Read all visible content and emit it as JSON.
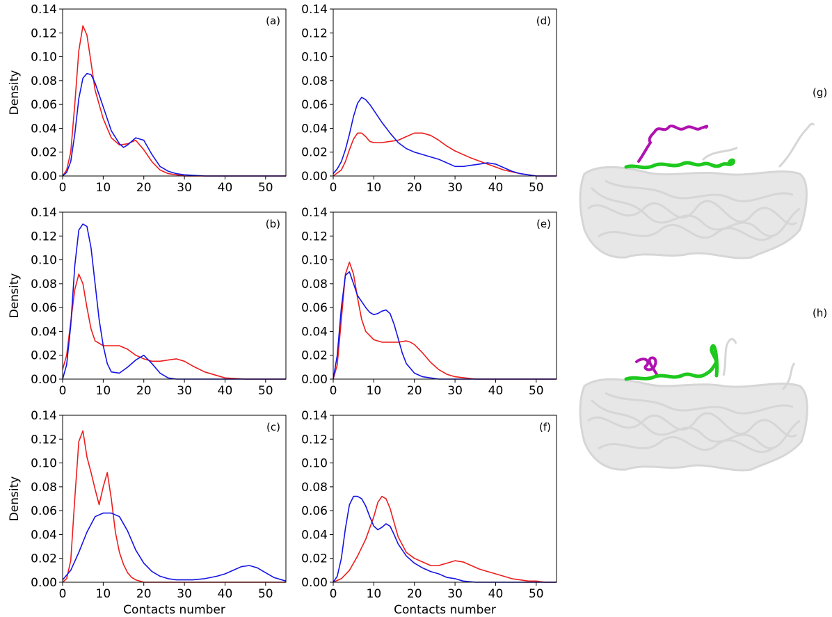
{
  "colors": {
    "red": "#ee1c1c",
    "blue": "#1414e6",
    "magenta": "#b012b0",
    "green": "#1ec81e",
    "protein": "#d8d8d8"
  },
  "chart_data": [
    {
      "label": "(a)",
      "type": "line",
      "xlim": [
        0,
        55
      ],
      "ylim": [
        0,
        0.14
      ],
      "ylabel": "Density",
      "xlabel": "",
      "xticks": [
        "0",
        "10",
        "20",
        "30",
        "40",
        "50"
      ],
      "yticks": [
        "0.00",
        "0.02",
        "0.04",
        "0.06",
        "0.08",
        "0.10",
        "0.12",
        "0.14"
      ],
      "series": [
        {
          "color": "red",
          "x": [
            0,
            1,
            2,
            3,
            4,
            5,
            6,
            7,
            8,
            10,
            12,
            14,
            16,
            18,
            20,
            22,
            24,
            26,
            28,
            30,
            35,
            55
          ],
          "y": [
            0,
            0.005,
            0.02,
            0.06,
            0.105,
            0.126,
            0.118,
            0.095,
            0.072,
            0.048,
            0.032,
            0.026,
            0.027,
            0.03,
            0.022,
            0.012,
            0.005,
            0.002,
            0.001,
            0,
            0,
            0
          ]
        },
        {
          "color": "blue",
          "x": [
            0,
            1,
            2,
            3,
            4,
            5,
            6,
            7,
            8,
            10,
            12,
            14,
            15,
            16,
            18,
            20,
            22,
            24,
            26,
            28,
            30,
            35,
            55
          ],
          "y": [
            0,
            0.003,
            0.012,
            0.035,
            0.065,
            0.082,
            0.086,
            0.085,
            0.078,
            0.058,
            0.038,
            0.027,
            0.024,
            0.026,
            0.032,
            0.03,
            0.018,
            0.008,
            0.004,
            0.002,
            0.001,
            0,
            0
          ]
        }
      ]
    },
    {
      "label": "(b)",
      "type": "line",
      "xlim": [
        0,
        55
      ],
      "ylim": [
        0,
        0.14
      ],
      "ylabel": "Density",
      "xlabel": "",
      "xticks": [
        "0",
        "10",
        "20",
        "30",
        "40",
        "50"
      ],
      "yticks": [
        "0.00",
        "0.02",
        "0.04",
        "0.06",
        "0.08",
        "0.10",
        "0.12",
        "0.14"
      ],
      "series": [
        {
          "color": "red",
          "x": [
            0,
            1,
            2,
            3,
            4,
            5,
            6,
            7,
            8,
            10,
            12,
            14,
            16,
            18,
            20,
            22,
            24,
            26,
            28,
            30,
            32,
            35,
            40,
            45,
            55
          ],
          "y": [
            0.008,
            0.02,
            0.048,
            0.075,
            0.088,
            0.08,
            0.06,
            0.042,
            0.032,
            0.028,
            0.028,
            0.028,
            0.025,
            0.02,
            0.017,
            0.015,
            0.015,
            0.016,
            0.017,
            0.015,
            0.011,
            0.006,
            0.001,
            0,
            0
          ]
        },
        {
          "color": "blue",
          "x": [
            0,
            1,
            2,
            3,
            4,
            5,
            6,
            7,
            8,
            9,
            10,
            11,
            12,
            14,
            16,
            18,
            20,
            22,
            24,
            26,
            28,
            30,
            55
          ],
          "y": [
            0,
            0.012,
            0.045,
            0.095,
            0.125,
            0.13,
            0.128,
            0.11,
            0.08,
            0.05,
            0.028,
            0.013,
            0.006,
            0.005,
            0.01,
            0.016,
            0.02,
            0.013,
            0.005,
            0.001,
            0,
            0,
            0
          ]
        }
      ]
    },
    {
      "label": "(c)",
      "type": "line",
      "xlim": [
        0,
        55
      ],
      "ylim": [
        0,
        0.14
      ],
      "ylabel": "Density",
      "xlabel": "Contacts number",
      "xticks": [
        "0",
        "10",
        "20",
        "30",
        "40",
        "50"
      ],
      "yticks": [
        "0.00",
        "0.02",
        "0.04",
        "0.06",
        "0.08",
        "0.10",
        "0.12",
        "0.14"
      ],
      "series": [
        {
          "color": "red",
          "x": [
            0,
            1,
            2,
            3,
            4,
            5,
            6,
            7,
            8,
            9,
            10,
            11,
            12,
            13,
            14,
            15,
            16,
            17,
            18,
            20,
            22,
            55
          ],
          "y": [
            0,
            0.003,
            0.018,
            0.07,
            0.118,
            0.127,
            0.105,
            0.092,
            0.078,
            0.065,
            0.08,
            0.092,
            0.07,
            0.042,
            0.025,
            0.015,
            0.008,
            0.004,
            0.002,
            0,
            0,
            0
          ]
        },
        {
          "color": "blue",
          "x": [
            0,
            2,
            4,
            6,
            8,
            10,
            12,
            14,
            16,
            18,
            20,
            22,
            24,
            26,
            28,
            30,
            32,
            35,
            38,
            40,
            42,
            44,
            46,
            48,
            50,
            52,
            55
          ],
          "y": [
            0.002,
            0.01,
            0.025,
            0.042,
            0.055,
            0.058,
            0.058,
            0.055,
            0.043,
            0.027,
            0.016,
            0.009,
            0.005,
            0.003,
            0.002,
            0.002,
            0.002,
            0.003,
            0.005,
            0.007,
            0.01,
            0.013,
            0.014,
            0.012,
            0.008,
            0.004,
            0.001
          ]
        }
      ]
    },
    {
      "label": "(d)",
      "type": "line",
      "xlim": [
        0,
        55
      ],
      "ylim": [
        0,
        0.14
      ],
      "ylabel": "",
      "xlabel": "",
      "xticks": [
        "0",
        "10",
        "20",
        "30",
        "40",
        "50"
      ],
      "yticks": [
        "0.00",
        "0.02",
        "0.04",
        "0.06",
        "0.08",
        "0.10",
        "0.12",
        "0.14"
      ],
      "series": [
        {
          "color": "red",
          "x": [
            0,
            2,
            3,
            4,
            5,
            6,
            7,
            8,
            9,
            10,
            12,
            14,
            16,
            18,
            20,
            21,
            22,
            24,
            26,
            28,
            30,
            34,
            38,
            42,
            46,
            50,
            55
          ],
          "y": [
            0,
            0.005,
            0.012,
            0.022,
            0.031,
            0.036,
            0.036,
            0.033,
            0.029,
            0.028,
            0.028,
            0.029,
            0.03,
            0.033,
            0.036,
            0.036,
            0.036,
            0.034,
            0.03,
            0.025,
            0.021,
            0.015,
            0.01,
            0.005,
            0.002,
            0,
            0
          ]
        },
        {
          "color": "blue",
          "x": [
            0,
            1,
            2,
            3,
            4,
            5,
            6,
            7,
            8,
            9,
            10,
            12,
            14,
            16,
            18,
            20,
            22,
            24,
            26,
            28,
            30,
            32,
            34,
            36,
            38,
            40,
            42,
            44,
            46,
            48,
            50,
            55
          ],
          "y": [
            0.002,
            0.006,
            0.012,
            0.022,
            0.035,
            0.05,
            0.061,
            0.066,
            0.064,
            0.06,
            0.055,
            0.045,
            0.036,
            0.028,
            0.023,
            0.02,
            0.018,
            0.016,
            0.014,
            0.011,
            0.008,
            0.008,
            0.009,
            0.01,
            0.011,
            0.01,
            0.007,
            0.004,
            0.002,
            0.001,
            0,
            0
          ]
        }
      ]
    },
    {
      "label": "(e)",
      "type": "line",
      "xlim": [
        0,
        55
      ],
      "ylim": [
        0,
        0.14
      ],
      "ylabel": "",
      "xlabel": "",
      "xticks": [
        "0",
        "10",
        "20",
        "30",
        "40",
        "50"
      ],
      "yticks": [
        "0.00",
        "0.02",
        "0.04",
        "0.06",
        "0.08",
        "0.10",
        "0.12",
        "0.14"
      ],
      "series": [
        {
          "color": "red",
          "x": [
            0,
            1,
            2,
            3,
            4,
            5,
            6,
            7,
            8,
            10,
            12,
            14,
            16,
            18,
            19,
            20,
            22,
            24,
            26,
            28,
            30,
            35,
            55
          ],
          "y": [
            0,
            0.012,
            0.05,
            0.088,
            0.098,
            0.088,
            0.068,
            0.05,
            0.04,
            0.033,
            0.031,
            0.031,
            0.031,
            0.032,
            0.031,
            0.029,
            0.022,
            0.014,
            0.008,
            0.004,
            0.002,
            0,
            0
          ]
        },
        {
          "color": "blue",
          "x": [
            0,
            1,
            2,
            3,
            4,
            5,
            6,
            7,
            8,
            9,
            10,
            11,
            12,
            13,
            14,
            15,
            16,
            17,
            18,
            20,
            22,
            24,
            26,
            28,
            55
          ],
          "y": [
            0,
            0.02,
            0.06,
            0.087,
            0.09,
            0.08,
            0.07,
            0.065,
            0.06,
            0.056,
            0.054,
            0.055,
            0.057,
            0.058,
            0.055,
            0.046,
            0.034,
            0.022,
            0.013,
            0.005,
            0.002,
            0.001,
            0,
            0,
            0
          ]
        }
      ]
    },
    {
      "label": "(f)",
      "type": "line",
      "xlim": [
        0,
        55
      ],
      "ylim": [
        0,
        0.14
      ],
      "ylabel": "",
      "xlabel": "Contacts number",
      "xticks": [
        "0",
        "10",
        "20",
        "30",
        "40",
        "50"
      ],
      "yticks": [
        "0.00",
        "0.02",
        "0.04",
        "0.06",
        "0.08",
        "0.10",
        "0.12",
        "0.14"
      ],
      "series": [
        {
          "color": "red",
          "x": [
            0,
            2,
            4,
            6,
            8,
            10,
            11,
            12,
            13,
            14,
            15,
            16,
            18,
            20,
            22,
            24,
            26,
            28,
            30,
            32,
            34,
            36,
            38,
            40,
            42,
            44,
            46,
            48,
            50,
            52,
            55
          ],
          "y": [
            0,
            0.003,
            0.01,
            0.022,
            0.036,
            0.055,
            0.067,
            0.072,
            0.07,
            0.062,
            0.05,
            0.038,
            0.025,
            0.02,
            0.017,
            0.014,
            0.014,
            0.016,
            0.018,
            0.017,
            0.014,
            0.011,
            0.009,
            0.007,
            0.005,
            0.003,
            0.002,
            0.001,
            0.001,
            0,
            0
          ]
        },
        {
          "color": "blue",
          "x": [
            0,
            1,
            2,
            3,
            4,
            5,
            6,
            7,
            8,
            9,
            10,
            11,
            12,
            13,
            14,
            15,
            16,
            18,
            20,
            22,
            24,
            26,
            28,
            30,
            32,
            35,
            38,
            55
          ],
          "y": [
            0,
            0.005,
            0.02,
            0.045,
            0.065,
            0.072,
            0.072,
            0.07,
            0.064,
            0.055,
            0.047,
            0.044,
            0.046,
            0.049,
            0.047,
            0.04,
            0.032,
            0.022,
            0.016,
            0.012,
            0.009,
            0.007,
            0.004,
            0.003,
            0.001,
            0,
            0,
            0
          ]
        }
      ]
    }
  ],
  "structures": [
    {
      "label": "(g)"
    },
    {
      "label": "(h)"
    }
  ]
}
